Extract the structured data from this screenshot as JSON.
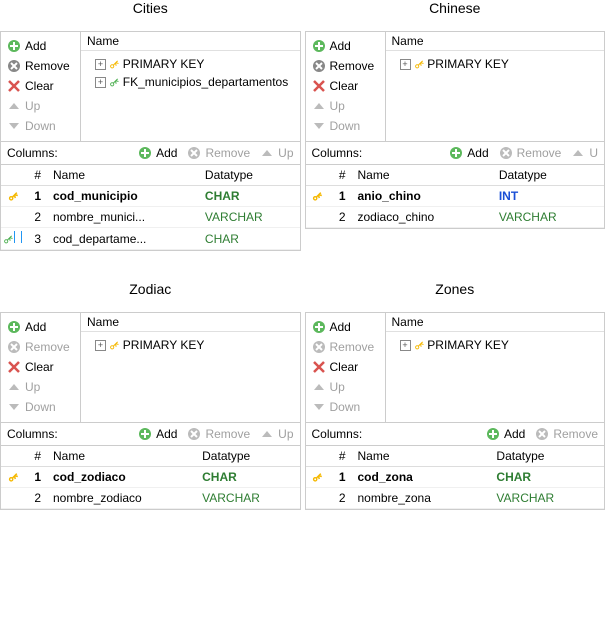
{
  "labels": {
    "name_header": "Name",
    "columns_label": "Columns:",
    "hash": "#",
    "col_name": "Name",
    "col_datatype": "Datatype"
  },
  "btn": {
    "add": "Add",
    "remove": "Remove",
    "clear": "Clear",
    "up": "Up",
    "down": "Down"
  },
  "icons": {
    "plus_color": "#5cb85c",
    "remove_color_on": "#888888",
    "remove_color_off": "#bbbbbb",
    "clear_color": "#d9534f",
    "arrow_off": "#bbbbbb"
  },
  "panels": [
    {
      "title": "Cities",
      "keys": [
        {
          "kind": "pk",
          "label": "PRIMARY KEY"
        },
        {
          "kind": "fk",
          "label": "FK_municipios_departamentos"
        }
      ],
      "btn_states": {
        "add": true,
        "remove": true,
        "clear": true,
        "up": false,
        "down": false
      },
      "col_actions": {
        "add": true,
        "remove": false,
        "up": false
      },
      "col_actions_trunc": "Up",
      "columns": [
        {
          "icons": [
            "pk"
          ],
          "n": 1,
          "name": "cod_municipio",
          "dt": "CHAR",
          "dt_cls": "dt-char",
          "pk": true
        },
        {
          "icons": [],
          "n": 2,
          "name": "nombre_munici...",
          "dt": "VARCHAR",
          "dt_cls": "dt-varchar",
          "pk": false
        },
        {
          "icons": [
            "fk",
            "nn"
          ],
          "n": 3,
          "name": "cod_departame...",
          "dt": "CHAR",
          "dt_cls": "dt-varchar",
          "pk": false
        }
      ]
    },
    {
      "title": "Chinese",
      "keys": [
        {
          "kind": "pk",
          "label": "PRIMARY KEY"
        }
      ],
      "btn_states": {
        "add": true,
        "remove": true,
        "clear": true,
        "up": false,
        "down": false
      },
      "col_actions": {
        "add": true,
        "remove": false,
        "up": false
      },
      "col_actions_trunc": "U",
      "columns": [
        {
          "icons": [
            "pk"
          ],
          "n": 1,
          "name": "anio_chino",
          "dt": "INT",
          "dt_cls": "dt-int",
          "pk": true
        },
        {
          "icons": [],
          "n": 2,
          "name": "zodiaco_chino",
          "dt": "VARCHAR",
          "dt_cls": "dt-varchar",
          "pk": false
        }
      ]
    },
    {
      "title": "Zodiac",
      "keys": [
        {
          "kind": "pk",
          "label": "PRIMARY KEY"
        }
      ],
      "btn_states": {
        "add": true,
        "remove": false,
        "clear": true,
        "up": false,
        "down": false
      },
      "col_actions": {
        "add": true,
        "remove": false,
        "up": false
      },
      "col_actions_trunc": "Up",
      "columns": [
        {
          "icons": [
            "pk"
          ],
          "n": 1,
          "name": "cod_zodiaco",
          "dt": "CHAR",
          "dt_cls": "dt-char",
          "pk": true
        },
        {
          "icons": [],
          "n": 2,
          "name": "nombre_zodiaco",
          "dt": "VARCHAR",
          "dt_cls": "dt-varchar",
          "pk": false
        }
      ]
    },
    {
      "title": "Zones",
      "keys": [
        {
          "kind": "pk",
          "label": "PRIMARY KEY"
        }
      ],
      "btn_states": {
        "add": true,
        "remove": false,
        "clear": true,
        "up": false,
        "down": false
      },
      "col_actions": {
        "add": true,
        "remove": false,
        "up": false
      },
      "col_actions_trunc": "",
      "columns": [
        {
          "icons": [
            "pk"
          ],
          "n": 1,
          "name": "cod_zona",
          "dt": "CHAR",
          "dt_cls": "dt-char",
          "pk": true
        },
        {
          "icons": [],
          "n": 2,
          "name": "nombre_zona",
          "dt": "VARCHAR",
          "dt_cls": "dt-varchar",
          "pk": false
        }
      ]
    }
  ]
}
